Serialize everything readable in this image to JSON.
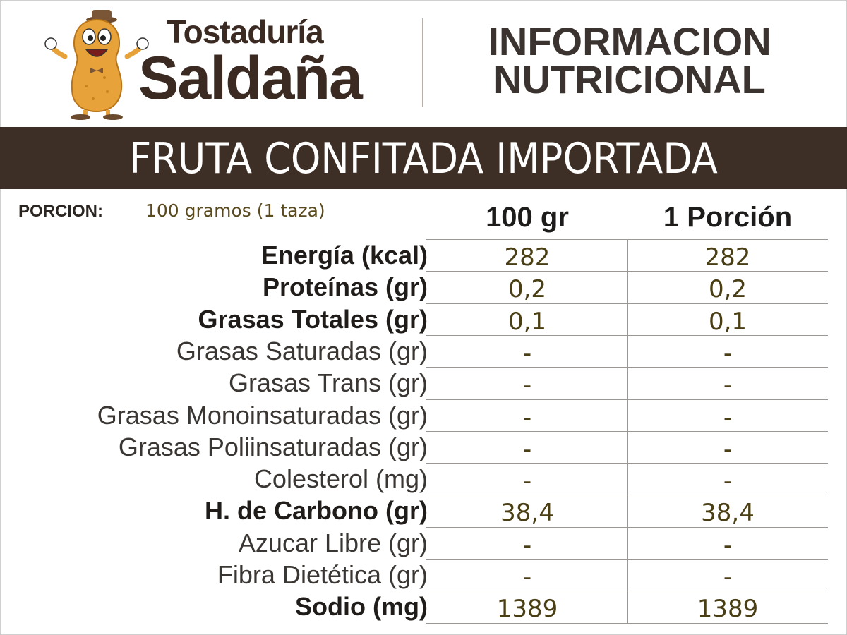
{
  "brand": {
    "line1": "Tostaduría",
    "line2": "Saldaña"
  },
  "header": {
    "title_line1": "INFORMACION",
    "title_line2": "NUTRICIONAL"
  },
  "product": {
    "name": "FRUTA CONFITADA IMPORTADA"
  },
  "portion": {
    "label": "PORCION:",
    "value": "100 gramos (1 taza)"
  },
  "columns": {
    "col1": "100 gr",
    "col2": "1 Porción"
  },
  "nutrients": [
    {
      "label": "Energía (kcal)",
      "v100": "282",
      "vportion": "282",
      "bold": true
    },
    {
      "label": "Proteínas (gr)",
      "v100": "0,2",
      "vportion": "0,2",
      "bold": true
    },
    {
      "label": "Grasas Totales (gr)",
      "v100": "0,1",
      "vportion": "0,1",
      "bold": true
    },
    {
      "label": "Grasas Saturadas (gr)",
      "v100": "-",
      "vportion": "-",
      "bold": false
    },
    {
      "label": "Grasas Trans (gr)",
      "v100": "-",
      "vportion": "-",
      "bold": false
    },
    {
      "label": "Grasas Monoinsaturadas (gr)",
      "v100": "-",
      "vportion": "-",
      "bold": false
    },
    {
      "label": "Grasas Poliinsaturadas (gr)",
      "v100": "-",
      "vportion": "-",
      "bold": false
    },
    {
      "label": "Colesterol (mg)",
      "v100": "-",
      "vportion": "-",
      "bold": false
    },
    {
      "label": "H. de Carbono (gr)",
      "v100": "38,4",
      "vportion": "38,4",
      "bold": true
    },
    {
      "label": "Azucar Libre (gr)",
      "v100": "-",
      "vportion": "-",
      "bold": false
    },
    {
      "label": "Fibra Dietética (gr)",
      "v100": "-",
      "vportion": "-",
      "bold": false
    },
    {
      "label": "Sodio (mg)",
      "v100": "1389",
      "vportion": "1389",
      "bold": true
    }
  ],
  "colors": {
    "brand_brown": "#3e2f26",
    "value_text": "#4a3f14",
    "peanut": "#e8a23a"
  }
}
